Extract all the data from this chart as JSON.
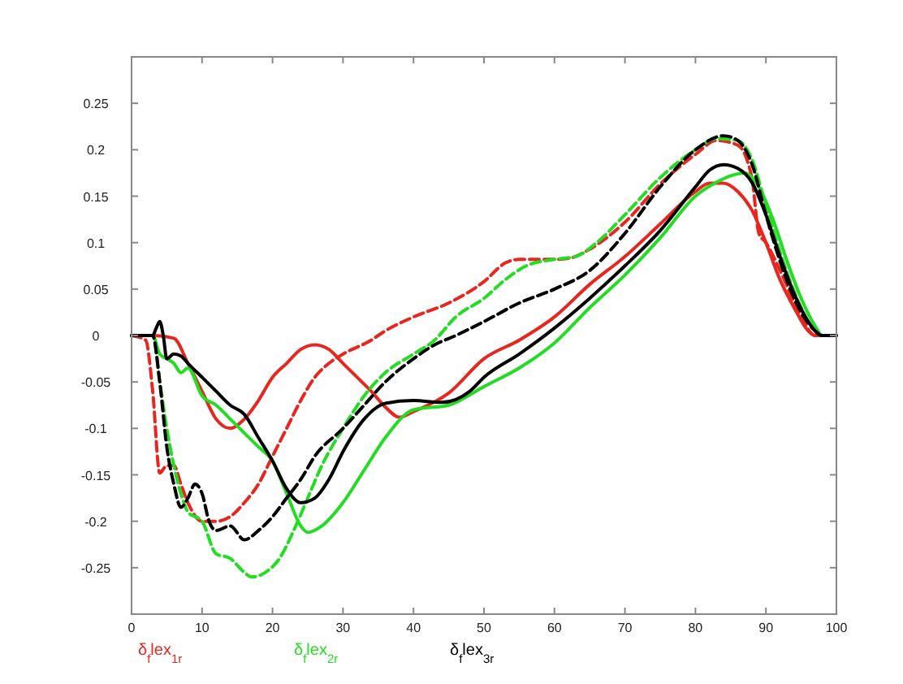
{
  "chart_data": {
    "type": "line",
    "xlim": [
      0,
      100
    ],
    "xticks": [
      0,
      10,
      20,
      30,
      40,
      50,
      60,
      70,
      80,
      90,
      100
    ],
    "ylim": [
      -0.3,
      0.3
    ],
    "yticks": [
      -0.25,
      -0.2,
      -0.15,
      -0.1,
      -0.05,
      0,
      0.05,
      0.1,
      0.15,
      0.2,
      0.25
    ],
    "grid": false,
    "legend": "bottom",
    "marker": "none",
    "series": [
      {
        "name": "δ$_{f}$lex$_{1r}$",
        "color": "#e8251f",
        "line_style": "solid",
        "x": [
          0,
          3,
          6,
          8,
          10,
          12,
          14,
          16,
          18,
          20,
          22,
          24,
          26,
          28,
          30,
          32,
          34,
          36,
          38,
          40,
          45,
          50,
          55,
          60,
          65,
          70,
          75,
          80,
          82,
          84,
          86,
          88,
          90,
          92,
          94,
          96,
          97,
          100
        ],
        "values": [
          0,
          0,
          -0.003,
          -0.03,
          -0.06,
          -0.09,
          -0.1,
          -0.09,
          -0.07,
          -0.045,
          -0.03,
          -0.015,
          -0.01,
          -0.015,
          -0.03,
          -0.045,
          -0.06,
          -0.077,
          -0.088,
          -0.082,
          -0.062,
          -0.025,
          -0.005,
          0.02,
          0.055,
          0.085,
          0.12,
          0.155,
          0.164,
          0.164,
          0.155,
          0.135,
          0.1,
          0.06,
          0.03,
          0.005,
          0,
          0
        ]
      },
      {
        "color": "#e8251f",
        "line_style": "dashed",
        "x": [
          0,
          2,
          3,
          4,
          5,
          6,
          7,
          8,
          10,
          12,
          14,
          16,
          18,
          20,
          22,
          24,
          26,
          28,
          30,
          34,
          36,
          40,
          45,
          50,
          53,
          55,
          60,
          62,
          65,
          70,
          75,
          80,
          83,
          86,
          88,
          89,
          90,
          92,
          95,
          97,
          100
        ],
        "values": [
          0,
          -0.005,
          -0.06,
          -0.148,
          -0.14,
          -0.14,
          -0.16,
          -0.18,
          -0.2,
          -0.2,
          -0.195,
          -0.18,
          -0.16,
          -0.13,
          -0.1,
          -0.07,
          -0.045,
          -0.03,
          -0.02,
          -0.005,
          0.005,
          0.02,
          0.035,
          0.058,
          0.078,
          0.082,
          0.082,
          0.083,
          0.093,
          0.122,
          0.163,
          0.195,
          0.21,
          0.205,
          0.17,
          0.11,
          0.1,
          0.07,
          0.02,
          0,
          0
        ]
      },
      {
        "name": "δ$_{f}$lex$_{2r}$",
        "color": "#22dd22",
        "line_style": "solid",
        "x": [
          0,
          3,
          4,
          5,
          6,
          7,
          8,
          10,
          12,
          14,
          16,
          18,
          20,
          22,
          24,
          25,
          27,
          30,
          33,
          36,
          40,
          45,
          50,
          55,
          60,
          65,
          70,
          75,
          80,
          83,
          85,
          87,
          89,
          91,
          93,
          95,
          97,
          98,
          100
        ],
        "values": [
          0,
          0,
          -0.02,
          -0.025,
          -0.03,
          -0.04,
          -0.035,
          -0.065,
          -0.075,
          -0.09,
          -0.105,
          -0.12,
          -0.135,
          -0.17,
          -0.205,
          -0.212,
          -0.205,
          -0.18,
          -0.145,
          -0.11,
          -0.08,
          -0.075,
          -0.055,
          -0.035,
          -0.008,
          0.03,
          0.065,
          0.105,
          0.15,
          0.165,
          0.172,
          0.175,
          0.16,
          0.125,
          0.08,
          0.04,
          0.01,
          0,
          0
        ]
      },
      {
        "color": "#22dd22",
        "line_style": "dashed",
        "x": [
          0,
          3,
          4,
          5,
          6,
          7,
          8,
          10,
          12,
          14,
          16,
          17,
          19,
          21,
          23,
          25,
          27,
          30,
          33,
          36,
          40,
          43,
          46,
          50,
          53,
          56,
          60,
          63,
          66,
          70,
          75,
          80,
          83,
          86,
          88,
          90,
          92,
          95,
          97,
          98,
          100
        ],
        "values": [
          0,
          0,
          -0.05,
          -0.1,
          -0.14,
          -0.17,
          -0.19,
          -0.2,
          -0.235,
          -0.24,
          -0.255,
          -0.26,
          -0.255,
          -0.24,
          -0.21,
          -0.175,
          -0.14,
          -0.1,
          -0.065,
          -0.04,
          -0.02,
          -0.005,
          0.02,
          0.04,
          0.06,
          0.075,
          0.082,
          0.085,
          0.1,
          0.13,
          0.17,
          0.2,
          0.212,
          0.21,
          0.19,
          0.14,
          0.09,
          0.03,
          0.005,
          0,
          0
        ]
      },
      {
        "name": "δ$_{f}$lex$_{3r}$",
        "color": "#000000",
        "line_style": "solid",
        "x": [
          0,
          3,
          3.5,
          4,
          4.5,
          5,
          6,
          7,
          8,
          10,
          12,
          14,
          16,
          18,
          20,
          22,
          24,
          26,
          28,
          30,
          33,
          36,
          40,
          44,
          48,
          50,
          55,
          60,
          65,
          70,
          75,
          80,
          82,
          84,
          86,
          88,
          90,
          92,
          94,
          96,
          98,
          100
        ],
        "values": [
          0,
          0,
          0.008,
          0.015,
          0,
          -0.025,
          -0.02,
          -0.022,
          -0.03,
          -0.045,
          -0.06,
          -0.075,
          -0.085,
          -0.11,
          -0.135,
          -0.165,
          -0.18,
          -0.175,
          -0.155,
          -0.125,
          -0.09,
          -0.073,
          -0.07,
          -0.072,
          -0.06,
          -0.045,
          -0.02,
          0.008,
          0.04,
          0.075,
          0.113,
          0.16,
          0.178,
          0.184,
          0.18,
          0.165,
          0.13,
          0.085,
          0.045,
          0.015,
          0,
          0
        ]
      },
      {
        "color": "#000000",
        "line_style": "dashed",
        "x": [
          0,
          3,
          4,
          5,
          6,
          7,
          8,
          9,
          10,
          11,
          12,
          14,
          16,
          18,
          20,
          22,
          24,
          26,
          30,
          33,
          36,
          40,
          43,
          46,
          50,
          55,
          60,
          65,
          70,
          75,
          80,
          84,
          86,
          88,
          90,
          92,
          95,
          97,
          98,
          100
        ],
        "values": [
          0,
          0,
          -0.05,
          -0.12,
          -0.16,
          -0.185,
          -0.175,
          -0.16,
          -0.17,
          -0.2,
          -0.21,
          -0.205,
          -0.22,
          -0.21,
          -0.195,
          -0.175,
          -0.155,
          -0.13,
          -0.1,
          -0.075,
          -0.05,
          -0.025,
          -0.01,
          0,
          0.015,
          0.035,
          0.05,
          0.07,
          0.11,
          0.16,
          0.2,
          0.215,
          0.21,
          0.185,
          0.13,
          0.08,
          0.025,
          0.005,
          0,
          0
        ]
      }
    ]
  }
}
